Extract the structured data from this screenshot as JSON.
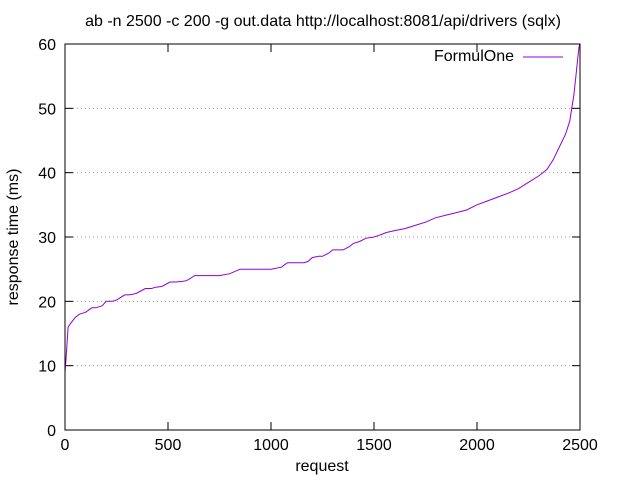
{
  "chart_data": {
    "type": "line",
    "title": "ab -n 2500 -c 200 -g out.data http://localhost:8081/api/drivers (sqlx)",
    "xlabel": "request",
    "ylabel": "response time (ms)",
    "xlim": [
      0,
      2500
    ],
    "ylim": [
      0,
      60
    ],
    "x_ticks": [
      0,
      500,
      1000,
      1500,
      2000,
      2500
    ],
    "y_ticks": [
      0,
      10,
      20,
      30,
      40,
      50,
      60
    ],
    "grid": "horizontal dotted",
    "legend_position": "top-right",
    "series": [
      {
        "name": "FormulOne",
        "color": "#9400d3",
        "x": [
          0,
          5,
          15,
          25,
          50,
          70,
          100,
          130,
          150,
          180,
          200,
          230,
          250,
          290,
          310,
          330,
          350,
          390,
          420,
          440,
          470,
          510,
          540,
          570,
          590,
          630,
          660,
          690,
          720,
          750,
          800,
          850,
          890,
          940,
          970,
          1000,
          1050,
          1080,
          1130,
          1160,
          1180,
          1200,
          1230,
          1250,
          1280,
          1300,
          1330,
          1350,
          1380,
          1400,
          1430,
          1460,
          1500,
          1520,
          1560,
          1600,
          1650,
          1700,
          1750,
          1800,
          1850,
          1900,
          1950,
          2000,
          2050,
          2100,
          2150,
          2200,
          2250,
          2300,
          2340,
          2370,
          2400,
          2430,
          2450,
          2470,
          2480,
          2490,
          2495,
          2499
        ],
        "y": [
          9,
          11,
          16,
          16.5,
          17.5,
          18,
          18.3,
          19,
          19,
          19.3,
          20,
          20,
          20.2,
          21,
          21,
          21.1,
          21.3,
          22,
          22,
          22.2,
          22.3,
          23,
          23,
          23.1,
          23.2,
          24,
          24,
          24,
          24,
          24,
          24.3,
          25,
          25,
          25,
          25,
          25,
          25.3,
          26,
          26,
          26,
          26.2,
          26.8,
          27,
          27,
          27.5,
          28,
          28,
          28,
          28.5,
          29,
          29.3,
          29.8,
          30,
          30.2,
          30.7,
          31,
          31.3,
          31.8,
          32.3,
          33,
          33.4,
          33.8,
          34.2,
          35,
          35.6,
          36.2,
          36.8,
          37.5,
          38.5,
          39.5,
          40.5,
          42,
          44,
          46,
          48,
          52,
          55,
          58,
          59.5,
          60
        ]
      }
    ]
  }
}
